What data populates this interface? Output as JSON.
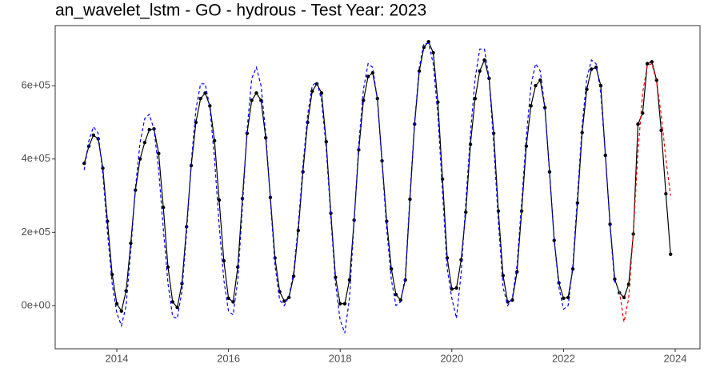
{
  "chart_data": {
    "type": "line",
    "title": "an_wavelet_lstm - GO - hydrous - Test Year: 2023",
    "x": [
      2013.417,
      2013.5,
      2013.583,
      2013.667,
      2013.75,
      2013.833,
      2013.917,
      2014,
      2014.083,
      2014.167,
      2014.25,
      2014.333,
      2014.417,
      2014.5,
      2014.583,
      2014.667,
      2014.75,
      2014.833,
      2014.917,
      2015,
      2015.083,
      2015.167,
      2015.25,
      2015.333,
      2015.417,
      2015.5,
      2015.583,
      2015.667,
      2015.75,
      2015.833,
      2015.917,
      2016,
      2016.083,
      2016.167,
      2016.25,
      2016.333,
      2016.417,
      2016.5,
      2016.583,
      2016.667,
      2016.75,
      2016.833,
      2016.917,
      2017,
      2017.083,
      2017.167,
      2017.25,
      2017.333,
      2017.417,
      2017.5,
      2017.583,
      2017.667,
      2017.75,
      2017.833,
      2017.917,
      2018,
      2018.083,
      2018.167,
      2018.25,
      2018.333,
      2018.417,
      2018.5,
      2018.583,
      2018.667,
      2018.75,
      2018.833,
      2018.917,
      2019,
      2019.083,
      2019.167,
      2019.25,
      2019.333,
      2019.417,
      2019.5,
      2019.583,
      2019.667,
      2019.75,
      2019.833,
      2019.917,
      2020,
      2020.083,
      2020.167,
      2020.25,
      2020.333,
      2020.417,
      2020.5,
      2020.583,
      2020.667,
      2020.75,
      2020.833,
      2020.917,
      2021,
      2021.083,
      2021.167,
      2021.25,
      2021.333,
      2021.417,
      2021.5,
      2021.583,
      2021.667,
      2021.75,
      2021.833,
      2021.917,
      2022,
      2022.083,
      2022.167,
      2022.25,
      2022.333,
      2022.417,
      2022.5,
      2022.583,
      2022.667,
      2022.75,
      2022.833,
      2022.917,
      2023,
      2023.083,
      2023.167,
      2023.25,
      2023.333,
      2023.417,
      2023.5,
      2023.583,
      2023.667,
      2023.75,
      2023.833,
      2023.917
    ],
    "series": [
      {
        "color": "#000000",
        "dashed": false,
        "points": true,
        "values": [
          388000,
          435000,
          465000,
          455000,
          375000,
          230000,
          85000,
          5000,
          -15000,
          40000,
          170000,
          315000,
          400000,
          445000,
          480000,
          482000,
          415000,
          268000,
          105000,
          10000,
          -5000,
          60000,
          215000,
          382000,
          500000,
          565000,
          580000,
          545000,
          450000,
          288000,
          122000,
          20000,
          10000,
          105000,
          292000,
          470000,
          560000,
          580000,
          560000,
          458000,
          295000,
          130000,
          38000,
          12000,
          22000,
          80000,
          205000,
          365000,
          500000,
          585000,
          605000,
          580000,
          447000,
          252000,
          77000,
          5000,
          5000,
          70000,
          233000,
          425000,
          560000,
          625000,
          635000,
          565000,
          395000,
          230000,
          100000,
          30000,
          15000,
          70000,
          290000,
          495000,
          640000,
          705000,
          720000,
          690000,
          555000,
          345000,
          130000,
          45000,
          48000,
          125000,
          255000,
          440000,
          565000,
          640000,
          670000,
          620000,
          470000,
          258000,
          82000,
          10000,
          15000,
          92000,
          258000,
          435000,
          545000,
          600000,
          615000,
          540000,
          365000,
          178000,
          62000,
          20000,
          22000,
          100000,
          280000,
          472000,
          590000,
          645000,
          650000,
          600000,
          410000,
          222000,
          72000,
          35000,
          22000,
          58000,
          195000,
          495000,
          525000,
          660000,
          665000,
          615000,
          478000,
          305000,
          140000
        ]
      },
      {
        "color": "#0000ff",
        "dashed": true,
        "points": false,
        "values": [
          370000,
          450000,
          488000,
          470000,
          360000,
          200000,
          60000,
          -20000,
          -55000,
          0,
          150000,
          320000,
          445000,
          510000,
          522000,
          480000,
          370000,
          210000,
          60000,
          -30000,
          -35000,
          40000,
          200000,
          390000,
          535000,
          605000,
          605000,
          540000,
          400000,
          220000,
          70000,
          -15000,
          -25000,
          70000,
          270000,
          480000,
          620000,
          650000,
          600000,
          470000,
          290000,
          110000,
          15000,
          0,
          25000,
          90000,
          220000,
          380000,
          520000,
          600000,
          610000,
          560000,
          430000,
          240000,
          60000,
          -40000,
          -75000,
          20000,
          230000,
          440000,
          590000,
          660000,
          650000,
          560000,
          390000,
          210000,
          70000,
          0,
          10000,
          80000,
          300000,
          500000,
          650000,
          715000,
          715000,
          660000,
          520000,
          310000,
          100000,
          20000,
          -35000,
          90000,
          280000,
          470000,
          620000,
          700000,
          700000,
          620000,
          440000,
          230000,
          50000,
          0,
          20000,
          110000,
          280000,
          460000,
          600000,
          660000,
          640000,
          540000,
          360000,
          180000,
          50000,
          -10000,
          0,
          110000,
          300000,
          490000,
          620000,
          670000,
          660000,
          580000,
          410000,
          220000,
          60000,
          null,
          null,
          null,
          null,
          null,
          null,
          null,
          null,
          null,
          null,
          null,
          null
        ]
      },
      {
        "color": "#ff0000",
        "dashed": true,
        "points": false,
        "values": [
          null,
          null,
          null,
          null,
          null,
          null,
          null,
          null,
          null,
          null,
          null,
          null,
          null,
          null,
          null,
          null,
          null,
          null,
          null,
          null,
          null,
          null,
          null,
          null,
          null,
          null,
          null,
          null,
          null,
          null,
          null,
          null,
          null,
          null,
          null,
          null,
          null,
          null,
          null,
          null,
          null,
          null,
          null,
          null,
          null,
          null,
          null,
          null,
          null,
          null,
          null,
          null,
          null,
          null,
          null,
          null,
          null,
          null,
          null,
          null,
          null,
          null,
          null,
          null,
          null,
          null,
          null,
          null,
          null,
          null,
          null,
          null,
          null,
          null,
          null,
          null,
          null,
          null,
          null,
          null,
          null,
          null,
          null,
          null,
          null,
          null,
          null,
          null,
          null,
          null,
          null,
          null,
          null,
          null,
          null,
          null,
          null,
          null,
          null,
          null,
          null,
          null,
          null,
          null,
          null,
          null,
          null,
          null,
          null,
          null,
          null,
          null,
          null,
          null,
          null,
          40000,
          -45000,
          20000,
          200000,
          420000,
          580000,
          655000,
          660000,
          610000,
          520000,
          400000,
          300000
        ]
      }
    ],
    "xlim": [
      2012.897,
      2024.444
    ],
    "xticks": [
      2014,
      2016,
      2018,
      2020,
      2022,
      2024
    ],
    "ylim": [
      -118000,
      764000
    ],
    "yticks": [
      {
        "value": 0,
        "label": "0e+00"
      },
      {
        "value": 200000,
        "label": "2e+05"
      },
      {
        "value": 400000,
        "label": "4e+05"
      },
      {
        "value": 600000,
        "label": "6e+05"
      }
    ],
    "grid": false
  }
}
